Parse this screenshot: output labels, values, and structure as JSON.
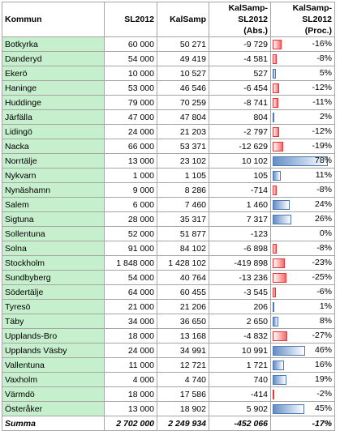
{
  "headers": {
    "kommun": "Kommun",
    "sl2012": "SL2012",
    "kalsamp": "KalSamp",
    "abs": "KalSamp-SL2012 (Abs.)",
    "proc": "KalSamp-SL2012 (Proc.)"
  },
  "colors": {
    "name_fill": "#c6efce",
    "neg_bar": "#f8696b",
    "pos_bar": "#638ec6",
    "grid": "#a6a6a6"
  },
  "rows": [
    {
      "kommun": "Botkyrka",
      "sl2012": "60 000",
      "kalsamp": "50 271",
      "abs": "-9 729",
      "proc": "-16%",
      "pct": -16
    },
    {
      "kommun": "Danderyd",
      "sl2012": "54 000",
      "kalsamp": "49 419",
      "abs": "-4 581",
      "proc": "-8%",
      "pct": -8
    },
    {
      "kommun": "Ekerö",
      "sl2012": "10 000",
      "kalsamp": "10 527",
      "abs": "527",
      "proc": "5%",
      "pct": 5
    },
    {
      "kommun": "Haninge",
      "sl2012": "53 000",
      "kalsamp": "46 546",
      "abs": "-6 454",
      "proc": "-12%",
      "pct": -12
    },
    {
      "kommun": "Huddinge",
      "sl2012": "79 000",
      "kalsamp": "70 259",
      "abs": "-8 741",
      "proc": "-11%",
      "pct": -11
    },
    {
      "kommun": "Järfälla",
      "sl2012": "47 000",
      "kalsamp": "47 804",
      "abs": "804",
      "proc": "2%",
      "pct": 2
    },
    {
      "kommun": "Lidingö",
      "sl2012": "24 000",
      "kalsamp": "21 203",
      "abs": "-2 797",
      "proc": "-12%",
      "pct": -12
    },
    {
      "kommun": "Nacka",
      "sl2012": "66 000",
      "kalsamp": "53 371",
      "abs": "-12 629",
      "proc": "-19%",
      "pct": -19
    },
    {
      "kommun": "Norrtälje",
      "sl2012": "13 000",
      "kalsamp": "23 102",
      "abs": "10 102",
      "proc": "78%",
      "pct": 78
    },
    {
      "kommun": "Nykvarn",
      "sl2012": "1 000",
      "kalsamp": "1 105",
      "abs": "105",
      "proc": "11%",
      "pct": 11
    },
    {
      "kommun": "Nynäshamn",
      "sl2012": "9 000",
      "kalsamp": "8 286",
      "abs": "-714",
      "proc": "-8%",
      "pct": -8
    },
    {
      "kommun": "Salem",
      "sl2012": "6 000",
      "kalsamp": "7 460",
      "abs": "1 460",
      "proc": "24%",
      "pct": 24
    },
    {
      "kommun": "Sigtuna",
      "sl2012": "28 000",
      "kalsamp": "35 317",
      "abs": "7 317",
      "proc": "26%",
      "pct": 26
    },
    {
      "kommun": "Sollentuna",
      "sl2012": "52 000",
      "kalsamp": "51 877",
      "abs": "-123",
      "proc": "0%",
      "pct": 0
    },
    {
      "kommun": "Solna",
      "sl2012": "91 000",
      "kalsamp": "84 102",
      "abs": "-6 898",
      "proc": "-8%",
      "pct": -8
    },
    {
      "kommun": "Stockholm",
      "sl2012": "1 848 000",
      "kalsamp": "1 428 102",
      "abs": "-419 898",
      "proc": "-23%",
      "pct": -23
    },
    {
      "kommun": "Sundbyberg",
      "sl2012": "54 000",
      "kalsamp": "40 764",
      "abs": "-13 236",
      "proc": "-25%",
      "pct": -25
    },
    {
      "kommun": "Södertälje",
      "sl2012": "64 000",
      "kalsamp": "60 455",
      "abs": "-3 545",
      "proc": "-6%",
      "pct": -6
    },
    {
      "kommun": "Tyresö",
      "sl2012": "21 000",
      "kalsamp": "21 206",
      "abs": "206",
      "proc": "1%",
      "pct": 1
    },
    {
      "kommun": "Täby",
      "sl2012": "34 000",
      "kalsamp": "36 650",
      "abs": "2 650",
      "proc": "8%",
      "pct": 8
    },
    {
      "kommun": "Upplands-Bro",
      "sl2012": "18 000",
      "kalsamp": "13 168",
      "abs": "-4 832",
      "proc": "-27%",
      "pct": -27
    },
    {
      "kommun": "Upplands Väsby",
      "sl2012": "24 000",
      "kalsamp": "34 991",
      "abs": "10 991",
      "proc": "46%",
      "pct": 46
    },
    {
      "kommun": "Vallentuna",
      "sl2012": "11 000",
      "kalsamp": "12 721",
      "abs": "1 721",
      "proc": "16%",
      "pct": 16
    },
    {
      "kommun": "Vaxholm",
      "sl2012": "4 000",
      "kalsamp": "4 740",
      "abs": "740",
      "proc": "19%",
      "pct": 19
    },
    {
      "kommun": "Värmdö",
      "sl2012": "18 000",
      "kalsamp": "17 586",
      "abs": "-414",
      "proc": "-2%",
      "pct": -2
    },
    {
      "kommun": "Österåker",
      "sl2012": "13 000",
      "kalsamp": "18 902",
      "abs": "5 902",
      "proc": "45%",
      "pct": 45
    }
  ],
  "summa": {
    "kommun": "Summa",
    "sl2012": "2 702 000",
    "kalsamp": "2 249 934",
    "abs": "-452 066",
    "proc": "-17%"
  }
}
